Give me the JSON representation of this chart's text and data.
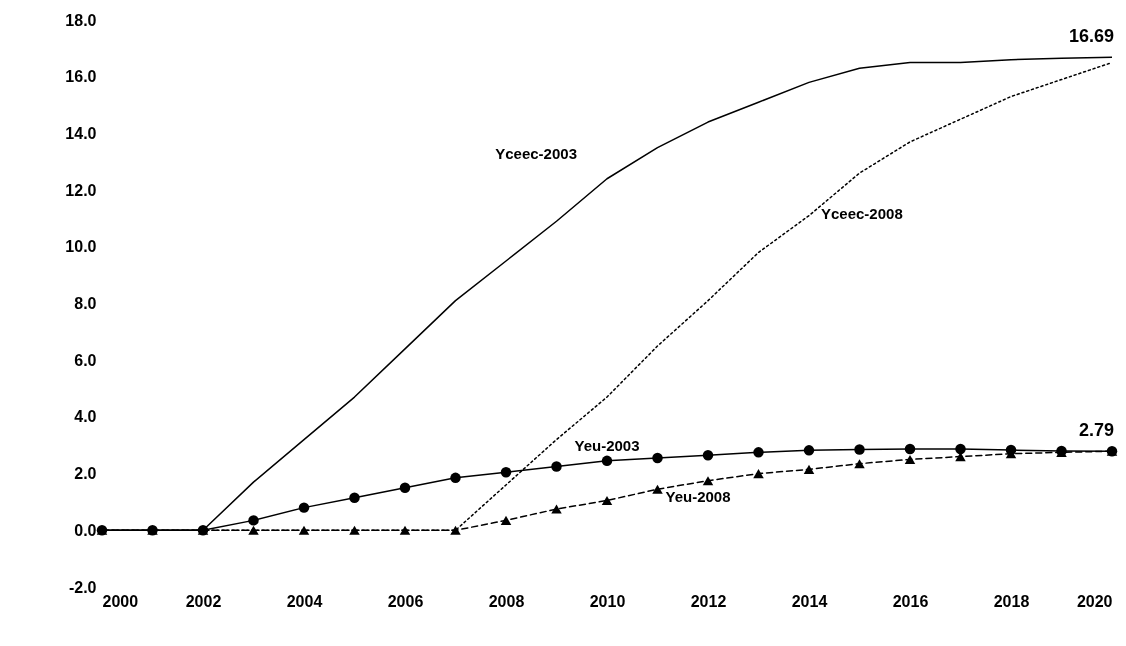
{
  "chart_data": {
    "type": "line",
    "x": [
      2000,
      2001,
      2002,
      2003,
      2004,
      2005,
      2006,
      2007,
      2008,
      2009,
      2010,
      2011,
      2012,
      2013,
      2014,
      2015,
      2016,
      2017,
      2018,
      2019,
      2020
    ],
    "series": [
      {
        "name": "Yceec-2003",
        "color": "#000000",
        "marker": "none",
        "line_style": "solid",
        "values": [
          0,
          0,
          0,
          1.7,
          3.2,
          4.7,
          6.4,
          8.1,
          9.5,
          10.9,
          12.4,
          13.5,
          14.4,
          15.1,
          15.8,
          16.3,
          16.5,
          16.5,
          16.6,
          16.65,
          16.69
        ]
      },
      {
        "name": "Yceec-2008",
        "color": "#000000",
        "marker": "none",
        "line_style": "dotted",
        "values": [
          0,
          0,
          0,
          0,
          0,
          0,
          0,
          0,
          1.6,
          3.2,
          4.7,
          6.5,
          8.1,
          9.8,
          11.1,
          12.6,
          13.7,
          14.5,
          15.3,
          15.9,
          16.5
        ]
      },
      {
        "name": "Yeu-2003",
        "color": "#000000",
        "marker": "circle",
        "line_style": "solid",
        "values": [
          0,
          0,
          0,
          0.35,
          0.8,
          1.15,
          1.5,
          1.85,
          2.05,
          2.25,
          2.45,
          2.55,
          2.65,
          2.75,
          2.82,
          2.85,
          2.87,
          2.87,
          2.83,
          2.8,
          2.79
        ]
      },
      {
        "name": "Yeu-2008",
        "color": "#000000",
        "marker": "triangle",
        "line_style": "dashed",
        "values": [
          0,
          0,
          0,
          0,
          0,
          0,
          0,
          0,
          0.35,
          0.75,
          1.05,
          1.45,
          1.75,
          2.0,
          2.15,
          2.35,
          2.5,
          2.6,
          2.7,
          2.75,
          2.79
        ]
      }
    ],
    "xlim": [
      2000,
      2020
    ],
    "xticks": [
      2000,
      2002,
      2004,
      2006,
      2008,
      2010,
      2012,
      2014,
      2016,
      2018,
      2020
    ],
    "ylim": [
      -2,
      18
    ],
    "yticks": [
      {
        "value": -2,
        "label": "-2.0"
      },
      {
        "value": 0,
        "label": "0.0"
      },
      {
        "value": 2,
        "label": "2.0"
      },
      {
        "value": 4,
        "label": "4.0"
      },
      {
        "value": 6,
        "label": "6.0"
      },
      {
        "value": 8,
        "label": "8.0"
      },
      {
        "value": 10,
        "label": "10.0"
      },
      {
        "value": 12,
        "label": "12.0"
      },
      {
        "value": 14,
        "label": "14.0"
      },
      {
        "value": 16,
        "label": "16.0"
      },
      {
        "value": 18,
        "label": "18.0"
      }
    ],
    "annotations": [
      {
        "text": "16.69",
        "x": 2020,
        "y": 16.69
      },
      {
        "text": "2.79",
        "x": 2020,
        "y": 2.79
      }
    ],
    "grid": false
  }
}
